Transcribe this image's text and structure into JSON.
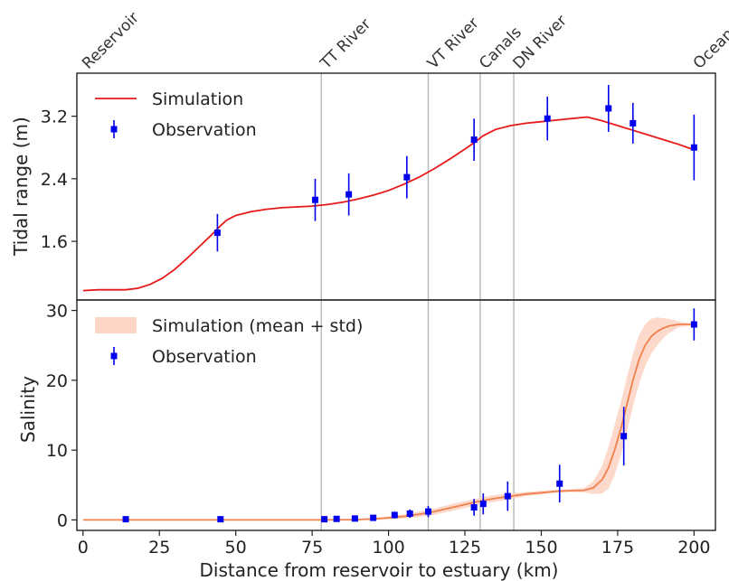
{
  "chart_data": [
    {
      "panel": "top",
      "type": "line",
      "ylabel": "Tidal range (m)",
      "xlim": [
        -2,
        207
      ],
      "ylim": [
        0.85,
        3.75
      ],
      "yticks": [
        1.6,
        2.4,
        3.2
      ],
      "ytick_labels": [
        "1.6",
        "2.4",
        "3.2"
      ],
      "legend": {
        "placement": "top-left",
        "entries": [
          "Simulation",
          "Observation"
        ]
      },
      "colors": {
        "simulation": "#e8191a",
        "observation": "#0000ee"
      },
      "series": [
        {
          "name": "Simulation",
          "kind": "line",
          "x": [
            0,
            5,
            10,
            14,
            18,
            22,
            26,
            30,
            34,
            38,
            42,
            45,
            47,
            50,
            55,
            60,
            65,
            70,
            75,
            80,
            85,
            90,
            95,
            100,
            105,
            110,
            115,
            120,
            125,
            128,
            131,
            135,
            140,
            145,
            150,
            155,
            160,
            165,
            170,
            175,
            180,
            185,
            190,
            195,
            200
          ],
          "y": [
            0.97,
            0.98,
            0.98,
            0.98,
            1.0,
            1.05,
            1.13,
            1.24,
            1.38,
            1.53,
            1.68,
            1.8,
            1.87,
            1.93,
            1.98,
            2.01,
            2.03,
            2.04,
            2.05,
            2.07,
            2.1,
            2.14,
            2.19,
            2.25,
            2.33,
            2.42,
            2.53,
            2.65,
            2.78,
            2.86,
            2.95,
            3.03,
            3.08,
            3.11,
            3.13,
            3.15,
            3.17,
            3.19,
            3.14,
            3.08,
            3.02,
            2.96,
            2.9,
            2.84,
            2.77
          ]
        },
        {
          "name": "Observation",
          "kind": "errorbar",
          "x": [
            44,
            76,
            87,
            106,
            128,
            152,
            172,
            180,
            200
          ],
          "y": [
            1.71,
            2.13,
            2.2,
            2.42,
            2.9,
            3.17,
            3.3,
            3.11,
            2.8
          ],
          "yerr": [
            0.24,
            0.27,
            0.27,
            0.27,
            0.27,
            0.28,
            0.3,
            0.26,
            0.42
          ]
        }
      ]
    },
    {
      "panel": "bottom",
      "type": "line",
      "xlabel": "Distance from reservoir to estuary (km)",
      "ylabel": "Salinity",
      "xlim": [
        -2,
        207
      ],
      "ylim": [
        -1.5,
        31.5
      ],
      "xticks": [
        0,
        25,
        50,
        75,
        100,
        125,
        150,
        175,
        200
      ],
      "xtick_labels": [
        "0",
        "25",
        "50",
        "75",
        "100",
        "125",
        "150",
        "175",
        "200"
      ],
      "yticks": [
        0,
        10,
        20,
        30
      ],
      "ytick_labels": [
        "0",
        "10",
        "20",
        "30"
      ],
      "legend": {
        "placement": "top-left",
        "entries": [
          "Simulation (mean + std)",
          "Observation"
        ]
      },
      "colors": {
        "mean_line": "#f0804e",
        "band": "#fcd5c4",
        "observation": "#0000ee"
      },
      "series": [
        {
          "name": "Simulation (mean + std)",
          "kind": "band",
          "x": [
            0,
            20,
            40,
            60,
            80,
            90,
            95,
            100,
            105,
            110,
            115,
            120,
            125,
            130,
            135,
            140,
            145,
            150,
            155,
            160,
            164,
            167,
            170,
            172,
            174,
            176,
            178,
            180,
            182,
            184,
            186,
            188,
            190,
            192,
            195,
            200
          ],
          "mean": [
            0,
            0,
            0,
            0,
            0,
            0.05,
            0.15,
            0.3,
            0.5,
            0.8,
            1.2,
            1.7,
            2.2,
            2.7,
            3.1,
            3.4,
            3.7,
            3.9,
            4.1,
            4.2,
            4.25,
            4.6,
            5.8,
            7.5,
            10.0,
            13.0,
            16.5,
            20.0,
            23.0,
            25.0,
            26.3,
            27.0,
            27.5,
            27.8,
            28.0,
            28.0
          ],
          "std": [
            0,
            0,
            0,
            0,
            0,
            0.05,
            0.1,
            0.2,
            0.3,
            0.4,
            0.45,
            0.5,
            0.5,
            0.5,
            0.5,
            0.4,
            0.3,
            0.25,
            0.2,
            0.2,
            0.3,
            0.9,
            2.0,
            3.0,
            3.6,
            3.8,
            3.9,
            3.8,
            3.5,
            3.0,
            2.5,
            2.0,
            1.4,
            1.0,
            0.4,
            0.1
          ]
        },
        {
          "name": "Observation",
          "kind": "errorbar",
          "x": [
            14,
            45,
            79,
            83,
            89,
            95,
            102,
            107,
            113,
            128,
            131,
            139,
            156,
            177,
            200
          ],
          "y": [
            0.1,
            0.1,
            0.1,
            0.15,
            0.2,
            0.3,
            0.7,
            0.9,
            1.2,
            1.8,
            2.3,
            3.4,
            5.2,
            12.0,
            28.0
          ],
          "yerr": [
            0.1,
            0.1,
            0.15,
            0.2,
            0.3,
            0.35,
            0.5,
            0.6,
            0.8,
            1.2,
            1.5,
            2.1,
            2.7,
            4.2,
            2.3
          ]
        }
      ]
    }
  ],
  "locations": [
    {
      "name": "Reservoir",
      "x": 0,
      "line": false
    },
    {
      "name": "TT River",
      "x": 78,
      "line": true
    },
    {
      "name": "VT River",
      "x": 113,
      "line": true
    },
    {
      "name": "Canals",
      "x": 130,
      "line": true
    },
    {
      "name": "DN River",
      "x": 141,
      "line": true
    },
    {
      "name": "Ocean",
      "x": 200,
      "line": false
    }
  ]
}
